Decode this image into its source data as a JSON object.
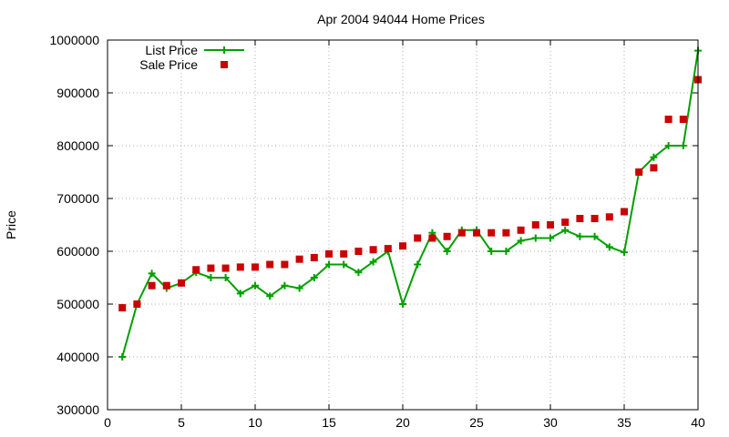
{
  "chart_data": {
    "type": "line",
    "title": "Apr 2004 94044 Home Prices",
    "xlabel": "",
    "ylabel": "Price",
    "xlim": [
      0,
      40
    ],
    "ylim": [
      300000,
      1000000
    ],
    "xticks": [
      0,
      5,
      10,
      15,
      20,
      25,
      30,
      35,
      40
    ],
    "yticks": [
      300000,
      400000,
      500000,
      600000,
      700000,
      800000,
      900000,
      1000000
    ],
    "grid": true,
    "legend_position": "top-left",
    "x": [
      1,
      2,
      3,
      4,
      5,
      6,
      7,
      8,
      9,
      10,
      11,
      12,
      13,
      14,
      15,
      16,
      17,
      18,
      19,
      20,
      21,
      22,
      23,
      24,
      25,
      26,
      27,
      28,
      29,
      30,
      31,
      32,
      33,
      34,
      35,
      36,
      37,
      38,
      39,
      40
    ],
    "series": [
      {
        "name": "List Price",
        "style": "line-points",
        "color": "#00a000",
        "marker": "plus",
        "values": [
          400000,
          500000,
          558000,
          530000,
          540000,
          560000,
          550000,
          550000,
          520000,
          535000,
          515000,
          535000,
          530000,
          550000,
          575000,
          575000,
          560000,
          580000,
          600000,
          500000,
          575000,
          635000,
          600000,
          640000,
          640000,
          600000,
          600000,
          620000,
          625000,
          625000,
          640000,
          628000,
          628000,
          608000,
          598000,
          750000,
          778000,
          800000,
          800000,
          980000
        ]
      },
      {
        "name": "Sale Price",
        "style": "points",
        "color": "#cc0000",
        "marker": "square",
        "values": [
          493000,
          500000,
          535000,
          535000,
          540000,
          565000,
          568000,
          568000,
          570000,
          570000,
          575000,
          575000,
          585000,
          588000,
          595000,
          595000,
          600000,
          603000,
          605000,
          610000,
          625000,
          625000,
          628000,
          635000,
          635000,
          635000,
          635000,
          640000,
          650000,
          650000,
          655000,
          662000,
          662000,
          665000,
          675000,
          750000,
          758000,
          850000,
          850000,
          925000
        ]
      }
    ]
  }
}
